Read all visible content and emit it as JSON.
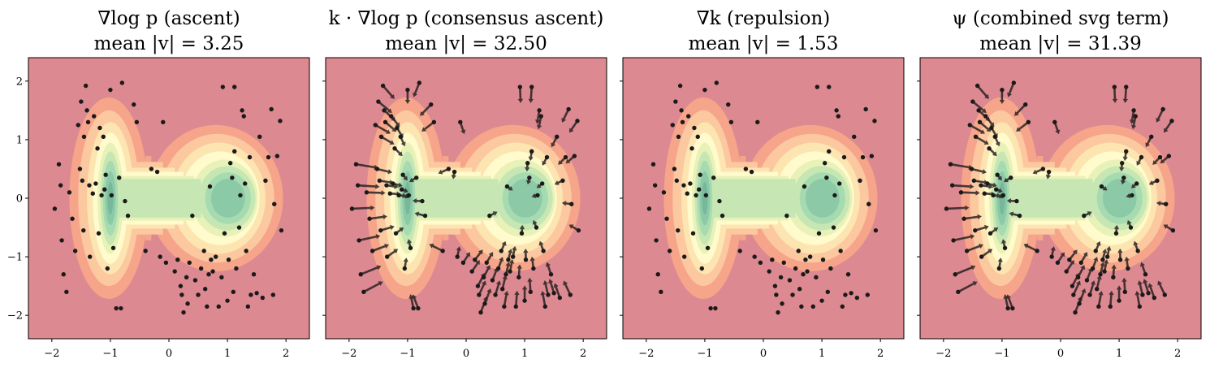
{
  "chart_data": [
    {
      "type": "contour+quiver",
      "title_line1": "∇log p (ascent)",
      "title_line2": "mean |v| = 3.25",
      "arrow_scale": 0,
      "xlim": [
        -2.4,
        2.4
      ],
      "ylim": [
        -2.4,
        2.4
      ],
      "xticks": [
        -2,
        -1,
        0,
        1,
        2
      ],
      "yticks": [
        -2,
        -1,
        0,
        1,
        2
      ],
      "show_y_tick_labels": true
    },
    {
      "type": "contour+quiver",
      "title_line1": "k · ∇log p (consensus ascent)",
      "title_line2": "mean |v| = 32.50",
      "arrow_scale": 1,
      "xlim": [
        -2.4,
        2.4
      ],
      "ylim": [
        -2.4,
        2.4
      ],
      "xticks": [
        -2,
        -1,
        0,
        1,
        2
      ],
      "yticks": [
        -2,
        -1,
        0,
        1,
        2
      ],
      "show_y_tick_labels": false
    },
    {
      "type": "contour+quiver",
      "title_line1": "∇k (repulsion)",
      "title_line2": "mean |v| = 1.53",
      "arrow_scale": 0,
      "xlim": [
        -2.4,
        2.4
      ],
      "ylim": [
        -2.4,
        2.4
      ],
      "xticks": [
        -2,
        -1,
        0,
        1,
        2
      ],
      "yticks": [
        -2,
        -1,
        0,
        1,
        2
      ],
      "show_y_tick_labels": false
    },
    {
      "type": "contour+quiver",
      "title_line1": "ψ (combined svg term)",
      "title_line2": "mean |v| = 31.39",
      "arrow_scale": 1,
      "xlim": [
        -2.4,
        2.4
      ],
      "ylim": [
        -2.4,
        2.4
      ],
      "xticks": [
        -2,
        -1,
        0,
        1,
        2
      ],
      "yticks": [
        -2,
        -1,
        0,
        1,
        2
      ],
      "show_y_tick_labels": false
    }
  ],
  "particles": [
    [
      -1.95,
      -0.18
    ],
    [
      -1.88,
      0.58
    ],
    [
      -1.85,
      0.22
    ],
    [
      -1.83,
      -0.72
    ],
    [
      -1.8,
      -1.3
    ],
    [
      -1.75,
      -1.6
    ],
    [
      -1.7,
      0.1
    ],
    [
      -1.65,
      -0.35
    ],
    [
      -1.6,
      -0.9
    ],
    [
      -1.55,
      1.25
    ],
    [
      -1.52,
      0.5
    ],
    [
      -1.5,
      1.65
    ],
    [
      -1.48,
      0.3
    ],
    [
      -1.46,
      -0.55
    ],
    [
      -1.45,
      1.05
    ],
    [
      -1.42,
      1.92
    ],
    [
      -1.4,
      1.5
    ],
    [
      -1.38,
      1.3
    ],
    [
      -1.36,
      0.22
    ],
    [
      -1.35,
      -1.0
    ],
    [
      -1.3,
      0.08
    ],
    [
      -1.28,
      1.4
    ],
    [
      -1.25,
      0.25
    ],
    [
      -1.22,
      0.85
    ],
    [
      -1.2,
      -0.6
    ],
    [
      -1.18,
      1.2
    ],
    [
      -1.15,
      0.05
    ],
    [
      -1.12,
      1.05
    ],
    [
      -1.1,
      0.15
    ],
    [
      -1.08,
      0.4
    ],
    [
      -1.05,
      -1.2
    ],
    [
      -1.0,
      1.85
    ],
    [
      -0.98,
      0.05
    ],
    [
      -0.95,
      -0.85
    ],
    [
      -0.9,
      -1.88
    ],
    [
      -0.85,
      0.35
    ],
    [
      -0.82,
      -1.88
    ],
    [
      -0.8,
      1.97
    ],
    [
      -0.75,
      -0.05
    ],
    [
      -0.7,
      -0.3
    ],
    [
      -0.6,
      1.6
    ],
    [
      -0.55,
      1.3
    ],
    [
      -0.4,
      -0.9
    ],
    [
      -0.3,
      0.5
    ],
    [
      -0.2,
      0.45
    ],
    [
      -0.15,
      -1.0
    ],
    [
      -0.1,
      1.3
    ],
    [
      -0.05,
      -1.1
    ],
    [
      0.1,
      -1.25
    ],
    [
      0.15,
      -1.05
    ],
    [
      0.2,
      -1.5
    ],
    [
      0.22,
      -1.65
    ],
    [
      0.25,
      -1.95
    ],
    [
      0.3,
      -1.35
    ],
    [
      0.32,
      -1.8
    ],
    [
      0.35,
      -1.1
    ],
    [
      0.4,
      -0.3
    ],
    [
      0.45,
      -1.4
    ],
    [
      0.5,
      -1.65
    ],
    [
      0.55,
      -1.2
    ],
    [
      0.6,
      -0.9
    ],
    [
      0.62,
      -1.55
    ],
    [
      0.65,
      -1.85
    ],
    [
      0.68,
      -1.3
    ],
    [
      0.7,
      0.2
    ],
    [
      0.72,
      -1.05
    ],
    [
      0.75,
      -1.25
    ],
    [
      0.8,
      -1.0
    ],
    [
      0.85,
      -1.85
    ],
    [
      0.9,
      -1.35
    ],
    [
      0.95,
      -0.6
    ],
    [
      1.0,
      -1.75
    ],
    [
      1.02,
      -1.05
    ],
    [
      1.05,
      0.6
    ],
    [
      1.08,
      0.35
    ],
    [
      1.1,
      -1.6
    ],
    [
      1.12,
      0.8
    ],
    [
      1.15,
      -1.2
    ],
    [
      1.2,
      -0.5
    ],
    [
      1.22,
      0.05
    ],
    [
      1.25,
      1.5
    ],
    [
      1.28,
      1.4
    ],
    [
      1.3,
      0.25
    ],
    [
      1.32,
      -0.9
    ],
    [
      1.35,
      -1.85
    ],
    [
      1.38,
      0.7
    ],
    [
      1.4,
      -1.65
    ],
    [
      1.45,
      -1.3
    ],
    [
      1.5,
      -1.62
    ],
    [
      1.55,
      1.05
    ],
    [
      1.6,
      -1.7
    ],
    [
      1.65,
      0.3
    ],
    [
      1.7,
      0.7
    ],
    [
      1.75,
      1.52
    ],
    [
      1.78,
      -1.65
    ],
    [
      1.8,
      -0.1
    ],
    [
      1.85,
      0.72
    ],
    [
      1.9,
      1.32
    ],
    [
      1.92,
      -0.55
    ],
    [
      0.92,
      1.9
    ],
    [
      1.12,
      1.9
    ]
  ]
}
